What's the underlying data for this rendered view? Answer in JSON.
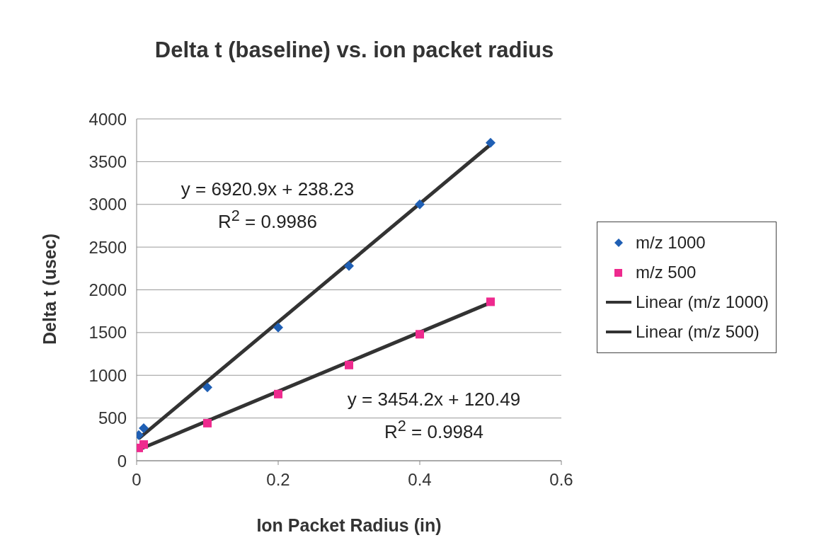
{
  "chart_data": {
    "type": "scatter",
    "title": "Delta t (baseline) vs. ion packet radius",
    "xlabel": "Ion Packet Radius (in)",
    "ylabel": "Delta t (usec)",
    "xlim": [
      0,
      0.6
    ],
    "xticks": [
      0,
      0.2,
      0.4,
      0.6
    ],
    "ylim": [
      0,
      4000
    ],
    "yticks": [
      0,
      500,
      1000,
      1500,
      2000,
      2500,
      3000,
      3500,
      4000
    ],
    "grid": "y",
    "legend": "right",
    "series": [
      {
        "name": "m/z 1000",
        "marker": "diamond",
        "color": "#1f5fb4",
        "x": [
          0.003,
          0.01,
          0.1,
          0.2,
          0.3,
          0.4,
          0.5
        ],
        "values": [
          300,
          380,
          860,
          1560,
          2280,
          3000,
          3720
        ]
      },
      {
        "name": "m/z 500",
        "marker": "square",
        "color": "#ee2a8e",
        "x": [
          0.003,
          0.01,
          0.1,
          0.2,
          0.3,
          0.4,
          0.5
        ],
        "values": [
          150,
          190,
          440,
          780,
          1120,
          1480,
          1860
        ]
      },
      {
        "name": "Linear (m/z 1000)",
        "type": "line",
        "line_style": "solid",
        "color": "#333333",
        "x": [
          0.003,
          0.5
        ],
        "values": [
          260,
          3700
        ]
      },
      {
        "name": "Linear (m/z 500)",
        "type": "line",
        "line_style": "solid",
        "color": "#333333",
        "x": [
          0.003,
          0.5
        ],
        "values": [
          130,
          1850
        ]
      }
    ],
    "annotations": [
      "y = 6920.9x + 238.23",
      "R$^{2}$ = 0.9986",
      "y = 3454.2x + 120.49",
      "R$^{2}$ = 0.9984"
    ]
  }
}
